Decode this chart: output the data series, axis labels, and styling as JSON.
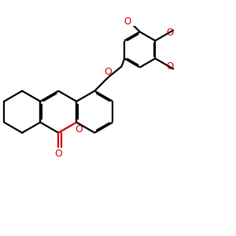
{
  "bg_color": "#ffffff",
  "bond_color": "#000000",
  "oxygen_color": "#cc0000",
  "lw": 1.6,
  "dbo": 0.05,
  "figsize": [
    3.0,
    3.0
  ],
  "dpi": 100,
  "xlim": [
    -3.0,
    6.5
  ],
  "ylim": [
    -3.5,
    4.0
  ]
}
